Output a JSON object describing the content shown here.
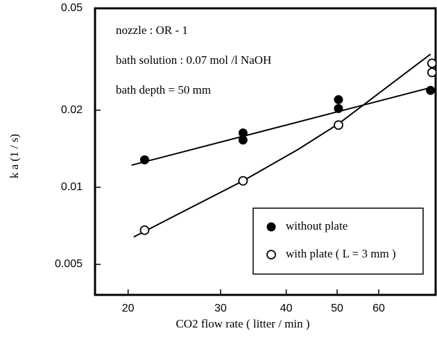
{
  "chart_data": {
    "type": "scatter",
    "xlabel": "CO2 flow rate ( litter / min )",
    "ylabel": "k a (1 / s)",
    "annotations": [
      "nozzle : OR - 1",
      "bath solution : 0.07 mol /l NaOH",
      "bath depth = 50 mm"
    ],
    "log_x": true,
    "log_y": true,
    "xlim": [
      17.3,
      77
    ],
    "ylim": [
      0.0038,
      0.05
    ],
    "xticks": [
      20,
      30,
      40,
      50,
      60
    ],
    "yticks": [
      0.005,
      0.01,
      0.02,
      0.05
    ],
    "legend": "lower right",
    "series": [
      {
        "name": "without plate",
        "color": "#000000",
        "marker": "filled",
        "x": [
          21.5,
          33.1,
          33.1,
          50.3,
          50.3,
          75.3
        ],
        "values": [
          0.0128,
          0.0163,
          0.0153,
          0.022,
          0.0203,
          0.0239
        ]
      },
      {
        "name": "with plate ( L = 3 mm )",
        "color": "#000000",
        "marker": "open",
        "x": [
          21.5,
          33.1,
          50.3,
          75.8,
          75.8
        ],
        "values": [
          0.0068,
          0.0106,
          0.0175,
          0.0305,
          0.0281
        ]
      }
    ],
    "fit_lines": [
      {
        "color": "#000000",
        "x": [
          20.3,
          75.3
        ],
        "values": [
          0.0122,
          0.0245
        ]
      },
      {
        "color": "#000000",
        "x": [
          20.5,
          33.1,
          42.0,
          50.3,
          75.3
        ],
        "values": [
          0.0064,
          0.0106,
          0.014,
          0.0177,
          0.0331
        ]
      }
    ]
  }
}
